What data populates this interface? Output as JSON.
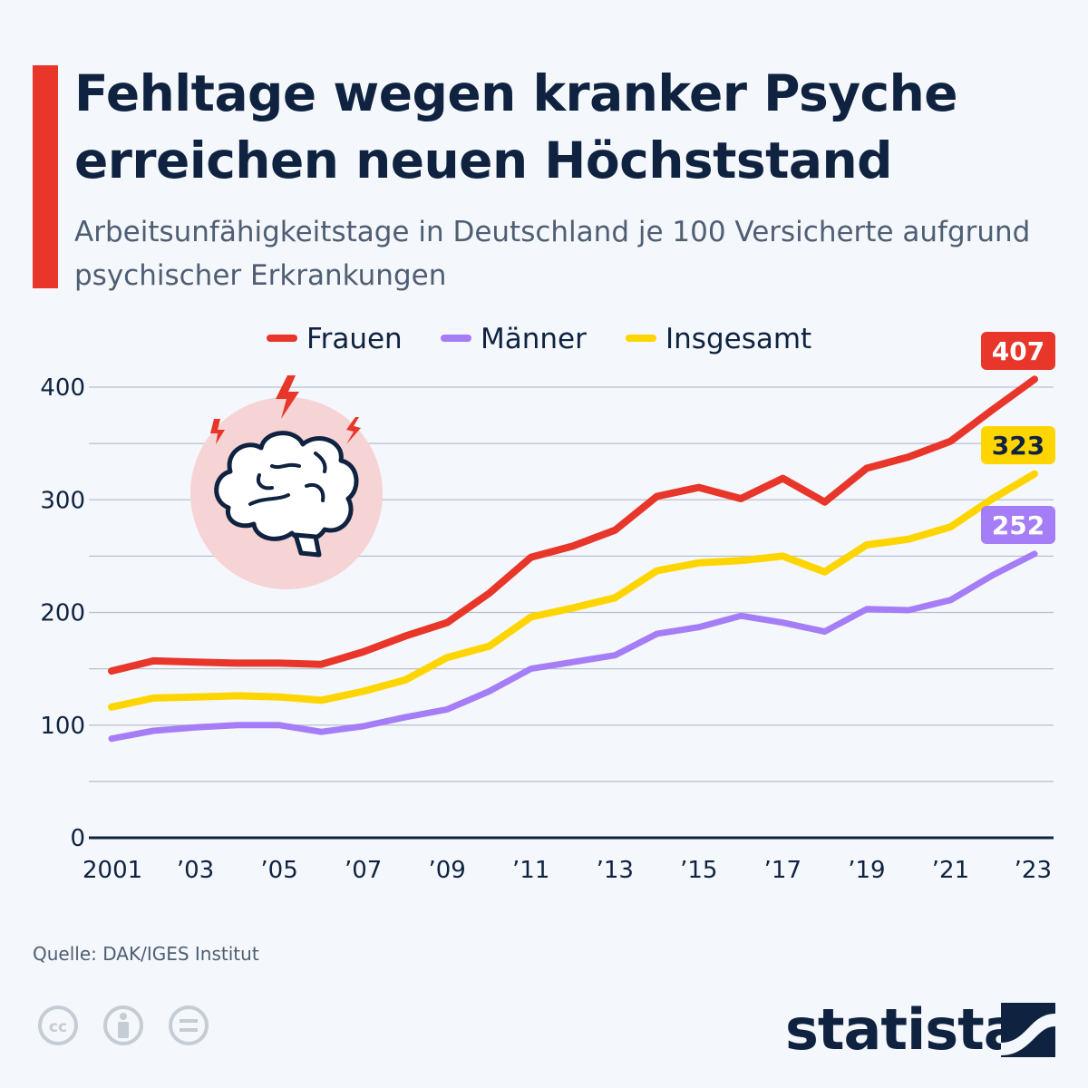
{
  "header": {
    "title": "Fehltage wegen kranker Psyche erreichen neuen Höchststand",
    "subtitle": "Arbeitsunfähigkeitstage in Deutschland je 100 Versicherte aufgrund psychischer Erkrankungen"
  },
  "footer": {
    "source": "Quelle: DAK/IGES Institut",
    "brand": "statista",
    "license_icons": [
      "cc-icon",
      "attribution-icon",
      "no-derivatives-icon"
    ]
  },
  "colors": {
    "accent": "#e8362a",
    "frauen": "#e8362a",
    "maenner": "#a57ef7",
    "insgesamt": "#ffd500",
    "text": "#0f2340",
    "grid": "#b9c1cc"
  },
  "illustration": {
    "icon": "brain-stress-icon"
  },
  "chart_data": {
    "type": "line",
    "x": [
      2001,
      2002,
      2003,
      2004,
      2005,
      2006,
      2007,
      2008,
      2009,
      2010,
      2011,
      2012,
      2013,
      2014,
      2015,
      2016,
      2017,
      2018,
      2019,
      2020,
      2021,
      2022,
      2023
    ],
    "x_tick_labels": [
      "2001",
      "’03",
      "’05",
      "’07",
      "’09",
      "’11",
      "’13",
      "’15",
      "’17",
      "’19",
      "’21",
      "’23"
    ],
    "x_tick_values": [
      2001,
      2003,
      2005,
      2007,
      2009,
      2011,
      2013,
      2015,
      2017,
      2019,
      2021,
      2023
    ],
    "y_ticks": [
      0,
      100,
      200,
      300,
      400
    ],
    "ylim": [
      0,
      400
    ],
    "grid": true,
    "legend_position": "top",
    "series": [
      {
        "name": "Frauen",
        "color": "#e8362a",
        "end_label": "407",
        "values": [
          148,
          157,
          156,
          155,
          155,
          154,
          165,
          179,
          191,
          217,
          249,
          259,
          273,
          303,
          311,
          301,
          319,
          298,
          328,
          338,
          352,
          380,
          407
        ]
      },
      {
        "name": "Männer",
        "color": "#a57ef7",
        "end_label": "252",
        "values": [
          88,
          95,
          98,
          100,
          100,
          94,
          99,
          107,
          114,
          130,
          150,
          156,
          162,
          181,
          187,
          197,
          191,
          183,
          203,
          202,
          211,
          233,
          252
        ]
      },
      {
        "name": "Insgesamt",
        "color": "#ffd500",
        "end_label": "323",
        "values": [
          116,
          124,
          125,
          126,
          125,
          122,
          130,
          140,
          160,
          170,
          196,
          204,
          213,
          237,
          244,
          246,
          250,
          236,
          260,
          265,
          276,
          301,
          323
        ]
      }
    ]
  }
}
